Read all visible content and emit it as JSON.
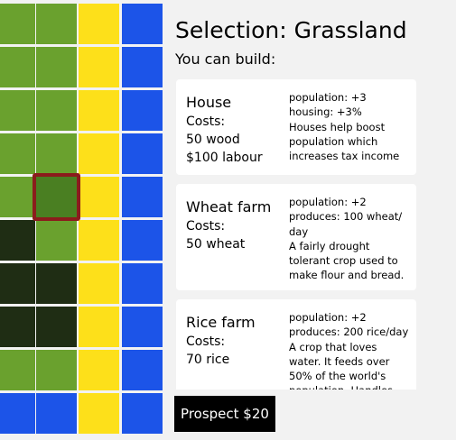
{
  "colors": {
    "grass": "#6aa12e",
    "dark": "#1f2d14",
    "sand": "#fde01a",
    "water": "#1c54e8",
    "selected_tile": "#4a7f22",
    "selection_border": "#8b1c1c"
  },
  "map": {
    "rows": [
      [
        "grass",
        "grass",
        "sand",
        "water"
      ],
      [
        "grass",
        "grass",
        "sand",
        "water"
      ],
      [
        "grass",
        "grass",
        "sand",
        "water"
      ],
      [
        "grass",
        "grass",
        "sand",
        "water"
      ],
      [
        "grass",
        "selected_tile",
        "sand",
        "water"
      ],
      [
        "dark",
        "grass",
        "sand",
        "water"
      ],
      [
        "dark",
        "dark",
        "sand",
        "water"
      ],
      [
        "dark",
        "dark",
        "sand",
        "water"
      ],
      [
        "grass",
        "grass",
        "sand",
        "water"
      ],
      [
        "water",
        "water",
        "sand",
        "water"
      ]
    ],
    "selected": {
      "row": 4,
      "col": 1
    }
  },
  "panel": {
    "title": "Selection: Grassland",
    "subtitle": "You can build:"
  },
  "buildings": [
    {
      "name": "House",
      "costs": [
        "Costs:",
        "50 wood",
        "$100 labour"
      ],
      "info": [
        "population: +3",
        "housing: +3%",
        "Houses help boost population which increases tax income"
      ]
    },
    {
      "name": "Wheat farm",
      "costs": [
        "Costs:",
        "50 wheat"
      ],
      "info": [
        "population: +2",
        "produces: 100 wheat/ day",
        "A fairly drought tolerant crop used to make flour and bread."
      ]
    },
    {
      "name": "Rice farm",
      "costs": [
        "Costs:",
        "70 rice"
      ],
      "info": [
        "population: +2",
        "produces: 200 rice/day",
        "A crop that loves water. It feeds over 50% of the world's population. Handles"
      ]
    }
  ],
  "prospect_label": "Prospect $20"
}
